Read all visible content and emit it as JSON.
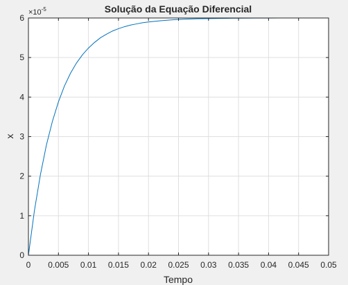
{
  "figure": {
    "background": "#f0f0f0"
  },
  "chart_data": {
    "type": "line",
    "title": "Solução da Equação Diferencial",
    "xlabel": "Tempo",
    "ylabel": "x",
    "exponent_label": "×10",
    "exponent_power": "-5",
    "xlim": [
      0,
      0.05
    ],
    "ylim": [
      0,
      6
    ],
    "grid": true,
    "xticks": [
      0,
      0.005,
      0.01,
      0.015,
      0.02,
      0.025,
      0.03,
      0.035,
      0.04,
      0.045,
      0.05
    ],
    "xtick_labels": [
      "0",
      "0.005",
      "0.01",
      "0.015",
      "0.02",
      "0.025",
      "0.03",
      "0.035",
      "0.04",
      "0.045",
      "0.05"
    ],
    "yticks": [
      0,
      1,
      2,
      3,
      4,
      5,
      6
    ],
    "ytick_labels": [
      "0",
      "1",
      "2",
      "3",
      "4",
      "5",
      "6"
    ],
    "series": [
      {
        "color": "#0072bd",
        "x": [
          0,
          0.001,
          0.002,
          0.003,
          0.004,
          0.005,
          0.006,
          0.007,
          0.008,
          0.009,
          0.01,
          0.011,
          0.012,
          0.013,
          0.014,
          0.015,
          0.016,
          0.017,
          0.018,
          0.019,
          0.02,
          0.022,
          0.024,
          0.026,
          0.028,
          0.03,
          0.032,
          0.034,
          0.036,
          0.038,
          0.04,
          0.042,
          0.044,
          0.046,
          0.048,
          0.05
        ],
        "values": [
          0,
          1.13,
          2.04,
          2.79,
          3.39,
          3.88,
          4.28,
          4.6,
          4.86,
          5.07,
          5.24,
          5.38,
          5.5,
          5.59,
          5.67,
          5.73,
          5.78,
          5.82,
          5.85,
          5.88,
          5.9,
          5.93,
          5.955,
          5.97,
          5.98,
          5.985,
          5.99,
          5.993,
          5.995,
          5.997,
          5.998,
          5.999,
          5.999,
          6.0,
          6.0,
          6.0
        ]
      }
    ]
  }
}
